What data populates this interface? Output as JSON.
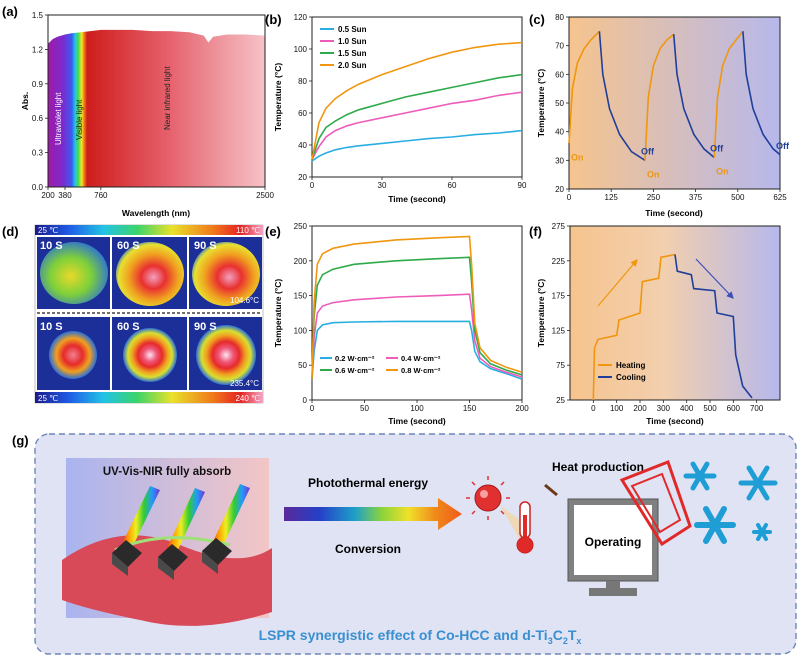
{
  "panels": {
    "a": {
      "label": "(a)"
    },
    "b": {
      "label": "(b)"
    },
    "c": {
      "label": "(c)"
    },
    "d": {
      "label": "(d)"
    },
    "e": {
      "label": "(e)"
    },
    "f": {
      "label": "(f)"
    },
    "g": {
      "label": "(g)"
    }
  },
  "chart_data": [
    {
      "id": "a",
      "type": "area",
      "xlabel": "Wavelength (nm)",
      "ylabel": "Abs.",
      "xlim": [
        200,
        2500
      ],
      "ylim": [
        0,
        1.5
      ],
      "yticks": [
        0.0,
        0.3,
        0.6,
        0.9,
        1.2,
        1.5
      ],
      "xticks": [
        200,
        380,
        760,
        2500
      ],
      "region_labels": [
        "Ultraviolet light",
        "Visible light",
        "Near infrared light"
      ],
      "x": [
        200,
        250,
        300,
        380,
        450,
        550,
        650,
        760,
        900,
        1100,
        1300,
        1500,
        1700,
        1850,
        1900,
        1950,
        2100,
        2300,
        2500
      ],
      "y": [
        1.25,
        1.29,
        1.31,
        1.33,
        1.34,
        1.35,
        1.36,
        1.37,
        1.37,
        1.37,
        1.36,
        1.36,
        1.35,
        1.32,
        1.26,
        1.31,
        1.33,
        1.33,
        1.32
      ]
    },
    {
      "id": "b",
      "type": "line",
      "xlabel": "Time (second)",
      "ylabel": "Temperature (°C)",
      "xlim": [
        0,
        90
      ],
      "ylim": [
        20,
        120
      ],
      "xticks": [
        0,
        30,
        60,
        90
      ],
      "yticks": [
        20,
        40,
        60,
        80,
        100,
        120
      ],
      "x": [
        0,
        3,
        6,
        10,
        15,
        20,
        30,
        40,
        50,
        60,
        70,
        80,
        90
      ],
      "series": [
        {
          "name": "0.5 Sun",
          "color": "#29aee2",
          "values": [
            30,
            33,
            35,
            37,
            38.5,
            39.5,
            41,
            42.5,
            44,
            45,
            46.5,
            47.5,
            49
          ]
        },
        {
          "name": "1.0 Sun",
          "color": "#ee5cba",
          "values": [
            31,
            39,
            45,
            49,
            52,
            54,
            57,
            60,
            63,
            66,
            68,
            71,
            73
          ]
        },
        {
          "name": "1.5 Sun",
          "color": "#2eaa4a",
          "values": [
            31,
            44,
            51,
            55,
            59,
            62,
            66,
            70,
            73,
            76,
            79,
            82,
            84
          ]
        },
        {
          "name": "2.0 Sun",
          "color": "#f0960f",
          "values": [
            31,
            54,
            63,
            69,
            74,
            78,
            84,
            89,
            94,
            98,
            101,
            103,
            104
          ]
        }
      ]
    },
    {
      "id": "c",
      "type": "line",
      "xlabel": "Time (second)",
      "ylabel": "Temperature (°C)",
      "xlim": [
        0,
        625
      ],
      "ylim": [
        20,
        80
      ],
      "xticks": [
        0,
        125,
        250,
        375,
        500,
        625
      ],
      "yticks": [
        20,
        30,
        40,
        50,
        60,
        70,
        80
      ],
      "annotations": [
        "On",
        "Off",
        "On",
        "Off",
        "On",
        "Off"
      ],
      "series": [
        {
          "name": "",
          "color": "#f0960f",
          "x": [
            0,
            10,
            25,
            45,
            65,
            90
          ],
          "values": [
            36,
            55,
            64,
            69,
            72,
            75
          ]
        },
        {
          "name": "",
          "color": "#1f3f9a",
          "x": [
            90,
            100,
            120,
            150,
            185,
            225
          ],
          "values": [
            75,
            60,
            48,
            39,
            33,
            30
          ]
        },
        {
          "name": "",
          "color": "#f0960f",
          "x": [
            225,
            235,
            250,
            270,
            290,
            310
          ],
          "values": [
            30,
            52,
            63,
            69,
            72,
            74
          ]
        },
        {
          "name": "",
          "color": "#1f3f9a",
          "x": [
            310,
            320,
            340,
            370,
            400,
            430
          ],
          "values": [
            74,
            60,
            48,
            39,
            34,
            31
          ]
        },
        {
          "name": "",
          "color": "#f0960f",
          "x": [
            430,
            440,
            455,
            475,
            495,
            515
          ],
          "values": [
            31,
            52,
            63,
            69,
            72,
            75
          ]
        },
        {
          "name": "",
          "color": "#1f3f9a",
          "x": [
            515,
            525,
            545,
            575,
            605,
            625
          ],
          "values": [
            75,
            60,
            48,
            39,
            34,
            32
          ]
        }
      ]
    },
    {
      "id": "d",
      "type": "heatmap",
      "top_scale": {
        "min": "25 ℃",
        "max": "110 ℃"
      },
      "bottom_scale": {
        "min": "25 ℃",
        "max": "240 ℃"
      },
      "top_times": [
        "10 S",
        "60 S",
        "90 S"
      ],
      "bottom_times": [
        "10 S",
        "60 S",
        "90 S"
      ],
      "top_max": "104.6°C",
      "bottom_max": "235.4°C"
    },
    {
      "id": "e",
      "type": "line",
      "xlabel": "Time (second)",
      "ylabel": "Temperature (°C)",
      "xlim": [
        0,
        200
      ],
      "ylim": [
        0,
        250
      ],
      "xticks": [
        0,
        50,
        100,
        150,
        200
      ],
      "yticks": [
        0,
        50,
        100,
        150,
        200,
        250
      ],
      "x": [
        0,
        2,
        5,
        10,
        20,
        40,
        80,
        120,
        150,
        152,
        155,
        160,
        170,
        185,
        200
      ],
      "series": [
        {
          "name": "0.2 W·cm⁻²",
          "color": "#29aee2",
          "values": [
            30,
            70,
            100,
            108,
            111,
            112,
            113,
            113,
            113,
            100,
            70,
            55,
            45,
            38,
            30
          ]
        },
        {
          "name": "0.4 W·cm⁻²",
          "color": "#ee5cba",
          "values": [
            30,
            90,
            125,
            135,
            140,
            144,
            148,
            150,
            152,
            130,
            85,
            60,
            48,
            40,
            33
          ]
        },
        {
          "name": "0.6 W·cm⁻²",
          "color": "#2eaa4a",
          "values": [
            30,
            120,
            165,
            180,
            188,
            195,
            200,
            203,
            205,
            170,
            100,
            68,
            52,
            43,
            36
          ]
        },
        {
          "name": "0.8 W·cm⁻²",
          "color": "#f0960f",
          "values": [
            30,
            140,
            195,
            210,
            218,
            224,
            230,
            233,
            235,
            195,
            110,
            75,
            57,
            47,
            40
          ]
        }
      ]
    },
    {
      "id": "f",
      "type": "line",
      "xlabel": "Time (second)",
      "ylabel": "Temperature (°C)",
      "xlim": [
        -100,
        800
      ],
      "ylim": [
        25,
        275
      ],
      "xticks": [
        0,
        100,
        200,
        300,
        400,
        500,
        600,
        700
      ],
      "yticks": [
        25,
        75,
        125,
        175,
        225,
        275
      ],
      "series": [
        {
          "name": "Heating",
          "color": "#f0960f",
          "x": [
            0,
            5,
            20,
            100,
            110,
            200,
            210,
            280,
            290,
            350
          ],
          "values": [
            25,
            100,
            112,
            118,
            140,
            150,
            195,
            200,
            230,
            234
          ]
        },
        {
          "name": "Cooling",
          "color": "#1f3f9a",
          "x": [
            350,
            360,
            420,
            430,
            520,
            530,
            600,
            610,
            640,
            680
          ],
          "values": [
            234,
            210,
            205,
            185,
            182,
            150,
            145,
            90,
            45,
            28
          ]
        }
      ]
    }
  ],
  "schematic": {
    "absorb_text": "UV-Vis-NIR fully absorb",
    "arrow_top": "Photothermal energy",
    "arrow_bottom": "Conversion",
    "heat_text": "Heat production",
    "operating_text": "Operating",
    "caption_prefix": "LSPR synergistic effect of Co-HCC and d-Ti",
    "sub_3": "3",
    "sub_2": "2",
    "sub_x": "x",
    "cap_c": "C",
    "cap_t": "T"
  },
  "colors": {
    "orange": "#f0960f",
    "navy": "#1f3f9a",
    "schematic_bg": "#dfe3f3",
    "caption": "#3a8fd1"
  }
}
